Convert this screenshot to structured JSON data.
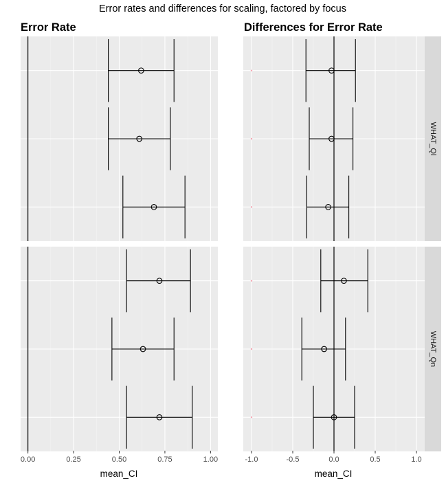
{
  "figure": {
    "title": "Error rates and differences for scaling, factored by focus"
  },
  "chart_data": [
    {
      "type": "errorbar",
      "title": "Error Rate",
      "xlabel": "mean_CI",
      "ylabel": "",
      "xlim": [
        -0.04,
        1.04
      ],
      "xticks": [
        0.0,
        0.25,
        0.5,
        0.75,
        1.0
      ],
      "xtick_labels": [
        "0.00",
        "0.25",
        "0.50",
        "0.75",
        "1.00"
      ],
      "reference_line": 0,
      "grid": true,
      "facets": [
        {
          "label": "WHAT_Ql",
          "rows": [
            {
              "mean": 0.62,
              "lower": 0.44,
              "upper": 0.8
            },
            {
              "mean": 0.61,
              "lower": 0.44,
              "upper": 0.78
            },
            {
              "mean": 0.69,
              "lower": 0.52,
              "upper": 0.86
            }
          ]
        },
        {
          "label": "WHAT_Qn",
          "rows": [
            {
              "mean": 0.72,
              "lower": 0.54,
              "upper": 0.89
            },
            {
              "mean": 0.63,
              "lower": 0.46,
              "upper": 0.8
            },
            {
              "mean": 0.72,
              "lower": 0.54,
              "upper": 0.9
            }
          ]
        }
      ]
    },
    {
      "type": "errorbar",
      "title": "Differences for Error Rate",
      "xlabel": "mean_CI",
      "ylabel": "",
      "xlim": [
        -1.1,
        1.1
      ],
      "xticks": [
        -1.0,
        -0.5,
        0.0,
        0.5,
        1.0
      ],
      "xtick_labels": [
        "-1.0",
        "-0.5",
        "0.0",
        "0.5",
        "1.0"
      ],
      "reference_line": 0,
      "grid": true,
      "facets": [
        {
          "label": "WHAT_Ql",
          "rows": [
            {
              "mean": -0.03,
              "lower": -0.34,
              "upper": 0.26
            },
            {
              "mean": -0.03,
              "lower": -0.3,
              "upper": 0.23
            },
            {
              "mean": -0.07,
              "lower": -0.33,
              "upper": 0.18
            }
          ]
        },
        {
          "label": "WHAT_Qn",
          "rows": [
            {
              "mean": 0.12,
              "lower": -0.16,
              "upper": 0.41
            },
            {
              "mean": -0.12,
              "lower": -0.39,
              "upper": 0.14
            },
            {
              "mean": 0.0,
              "lower": -0.25,
              "upper": 0.25
            }
          ]
        }
      ]
    }
  ],
  "colors": {
    "panel_background": "#ebebeb",
    "grid_major": "#ffffff",
    "grid_minor": "#f4f4f4",
    "strip_background": "#d9d9d9",
    "axis_text": "#4d4d4d",
    "data": "#000000",
    "marker_dot": "#f4a6b2"
  }
}
